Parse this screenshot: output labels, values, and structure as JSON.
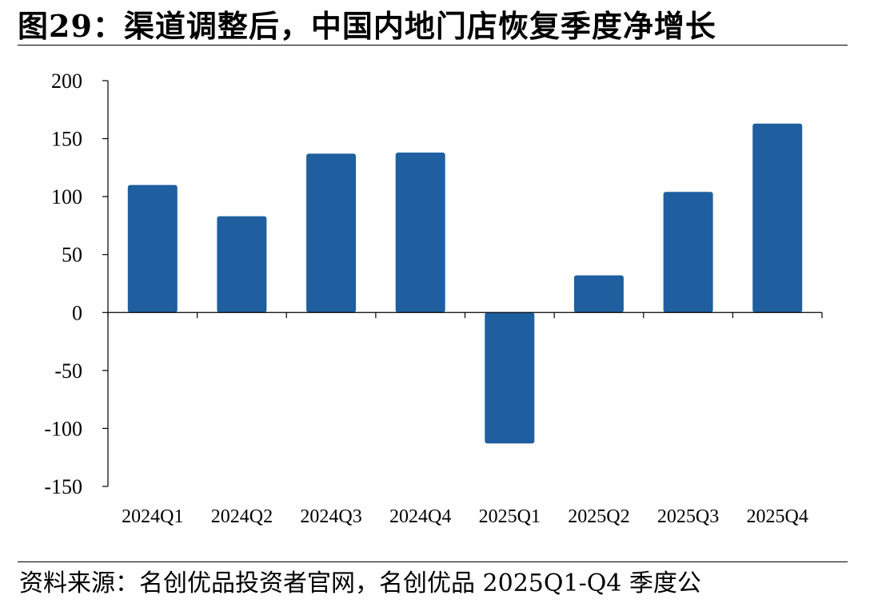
{
  "figure": {
    "title": "图29：渠道调整后，中国内地门店恢复季度净增长",
    "source": "资料来源：名创优品投资者官网，名创优品 2025Q1-Q4 季度公"
  },
  "colors": {
    "bar": "#1f5fa0",
    "axis": "#000000"
  },
  "chart_data": {
    "type": "bar",
    "title": "",
    "xlabel": "",
    "ylabel": "",
    "categories": [
      "2024Q1",
      "2024Q2",
      "2024Q3",
      "2024Q4",
      "2025Q1",
      "2025Q2",
      "2025Q3",
      "2025Q4"
    ],
    "values": [
      110,
      83,
      137,
      138,
      -113,
      32,
      104,
      163
    ],
    "ylim": [
      -150,
      200
    ],
    "yticks": [
      200,
      150,
      100,
      50,
      0,
      -50,
      -100,
      -150
    ],
    "grid": false,
    "legend": "none"
  }
}
